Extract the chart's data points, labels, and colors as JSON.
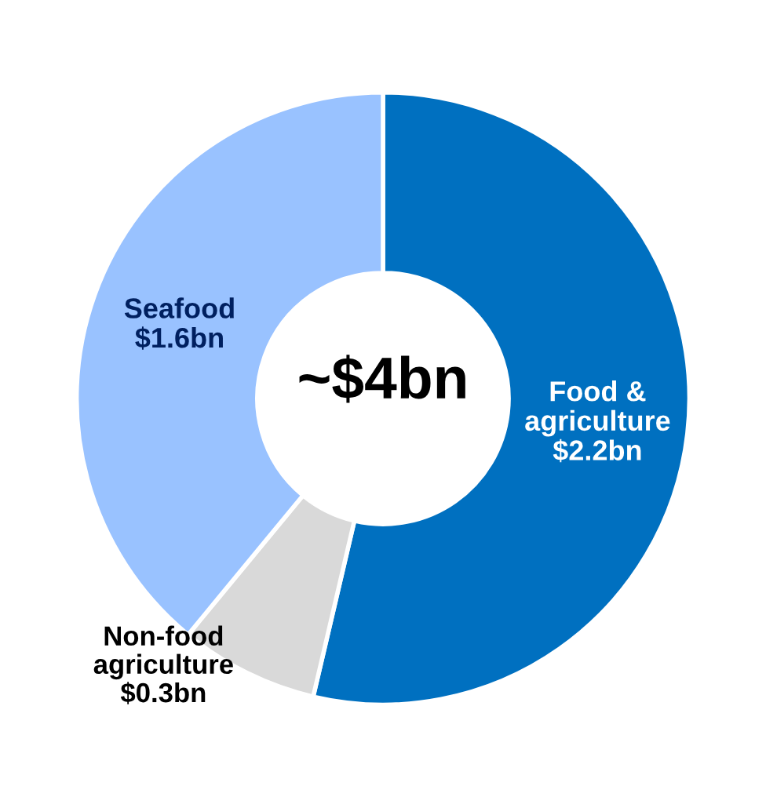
{
  "chart_data": {
    "type": "donut",
    "categories": [
      "Food &\nagriculture",
      "Non-food\nagriculture",
      "Seafood"
    ],
    "values": [
      2.2,
      0.3,
      1.6
    ],
    "value_labels": [
      "$2.2bn",
      "$0.3bn",
      "$1.6bn"
    ],
    "colors": [
      "#0070c0",
      "#d9d9d9",
      "#99c2ff"
    ],
    "annotations": [
      "~$4bn"
    ],
    "legend": false
  }
}
